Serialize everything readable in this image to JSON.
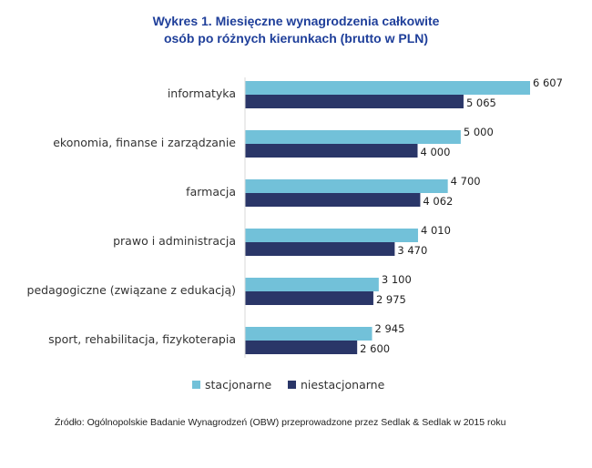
{
  "chart_data": {
    "type": "bar",
    "orientation": "horizontal",
    "title_line1": "Wykres 1. Miesięczne wynagrodzenia całkowite",
    "title_line2": "osób po różnych kierunkach (brutto w PLN)",
    "categories": [
      "informatyka",
      "ekonomia, finanse i zarządzanie",
      "farmacja",
      "prawo i administracja",
      "pedagogiczne (związane z edukacją)",
      "sport, rehabilitacja, fizykoterapia"
    ],
    "series": [
      {
        "name": "stacjonarne",
        "color": "#72c1d9",
        "values": [
          6607,
          5000,
          4700,
          4010,
          3100,
          2945
        ],
        "labels": [
          "6 607",
          "5 000",
          "4 700",
          "4 010",
          "3 100",
          "2 945"
        ]
      },
      {
        "name": "niestacjonarne",
        "color": "#2a3668",
        "values": [
          5065,
          4000,
          4062,
          3470,
          2975,
          2600
        ],
        "labels": [
          "5 065",
          "4 000",
          "4 062",
          "3 470",
          "2 975",
          "2 600"
        ]
      }
    ],
    "xlim": [
      0,
      6607
    ],
    "grid": false,
    "legend_position": "bottom"
  },
  "source": "Źródło: Ogólnopolskie Badanie Wynagrodzeń (OBW) przeprowadzone przez Sedlak & Sedlak w 2015 roku"
}
